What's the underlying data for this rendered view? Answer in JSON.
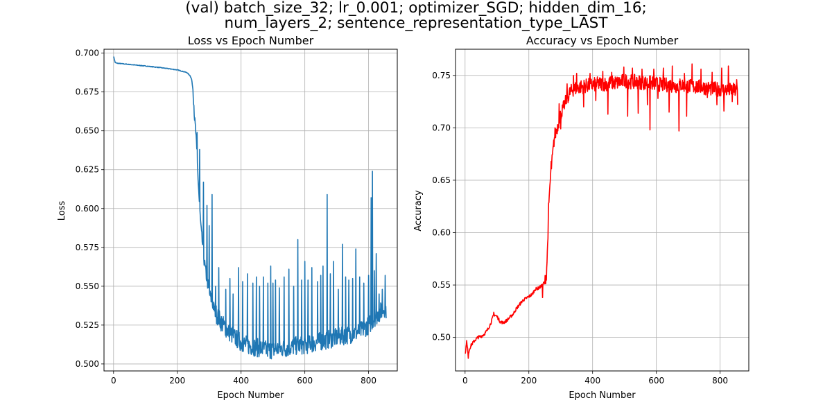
{
  "figure": {
    "suptitle_line1": "(val) batch_size_32; lr_0.001; optimizer_SGD; hidden_dim_16;",
    "suptitle_line2": "num_layers_2; sentence_representation_type_LAST"
  },
  "chart_data": [
    {
      "type": "line",
      "title": "Loss vs Epoch Number",
      "xlabel": "Epoch Number",
      "ylabel": "Loss",
      "xlim": [
        -30,
        890
      ],
      "ylim": [
        0.4955,
        0.7025
      ],
      "xticks": [
        0,
        200,
        400,
        600,
        800
      ],
      "yticks": [
        0.5,
        0.525,
        0.55,
        0.575,
        0.6,
        0.625,
        0.65,
        0.675,
        0.7
      ],
      "ytick_labels": [
        "0.500",
        "0.525",
        "0.550",
        "0.575",
        "0.600",
        "0.625",
        "0.650",
        "0.675",
        "0.700"
      ],
      "grid": true,
      "color": "#1f77b4",
      "series": [
        {
          "x": [
            0,
            5,
            10,
            50,
            100,
            150,
            200,
            230,
            240,
            245,
            250,
            255,
            258,
            260,
            265,
            270,
            275,
            280,
            285,
            290,
            300,
            310,
            320,
            340,
            360,
            380,
            400,
            420,
            440,
            460,
            480,
            500,
            520,
            540,
            560,
            580,
            600,
            620,
            640,
            660,
            680,
            700,
            720,
            740,
            760,
            780,
            800,
            810,
            815,
            820,
            830,
            840,
            850,
            855
          ],
          "y": [
            0.698,
            0.694,
            0.6935,
            0.6927,
            0.6917,
            0.6906,
            0.6892,
            0.6875,
            0.6855,
            0.683,
            0.675,
            0.655,
            0.649,
            0.64,
            0.62,
            0.6,
            0.585,
            0.575,
            0.565,
            0.558,
            0.546,
            0.539,
            0.533,
            0.526,
            0.521,
            0.517,
            0.514,
            0.512,
            0.511,
            0.51,
            0.509,
            0.509,
            0.51,
            0.51,
            0.511,
            0.512,
            0.512,
            0.513,
            0.514,
            0.515,
            0.516,
            0.517,
            0.518,
            0.519,
            0.52,
            0.522,
            0.525,
            0.527,
            0.529,
            0.53,
            0.532,
            0.534,
            0.536,
            0.535
          ],
          "spikes": [
            [
              262,
              0.649
            ],
            [
              270,
              0.638
            ],
            [
              282,
              0.617
            ],
            [
              293,
              0.602
            ],
            [
              300,
              0.589
            ],
            [
              309,
              0.609
            ],
            [
              320,
              0.55
            ],
            [
              330,
              0.562
            ],
            [
              352,
              0.548
            ],
            [
              365,
              0.555
            ],
            [
              375,
              0.545
            ],
            [
              392,
              0.562
            ],
            [
              405,
              0.553
            ],
            [
              420,
              0.558
            ],
            [
              437,
              0.552
            ],
            [
              448,
              0.556
            ],
            [
              458,
              0.55
            ],
            [
              470,
              0.556
            ],
            [
              484,
              0.552
            ],
            [
              493,
              0.563
            ],
            [
              500,
              0.552
            ],
            [
              508,
              0.554
            ],
            [
              520,
              0.549
            ],
            [
              535,
              0.556
            ],
            [
              550,
              0.561
            ],
            [
              565,
              0.55
            ],
            [
              578,
              0.58
            ],
            [
              590,
              0.554
            ],
            [
              600,
              0.566
            ],
            [
              610,
              0.554
            ],
            [
              622,
              0.562
            ],
            [
              640,
              0.553
            ],
            [
              650,
              0.557
            ],
            [
              657,
              0.563
            ],
            [
              670,
              0.609
            ],
            [
              680,
              0.558
            ],
            [
              690,
              0.566
            ],
            [
              705,
              0.548
            ],
            [
              718,
              0.577
            ],
            [
              728,
              0.556
            ],
            [
              738,
              0.554
            ],
            [
              750,
              0.555
            ],
            [
              760,
              0.574
            ],
            [
              772,
              0.556
            ],
            [
              785,
              0.552
            ],
            [
              800,
              0.557
            ],
            [
              808,
              0.607
            ],
            [
              812,
              0.624
            ],
            [
              818,
              0.56
            ],
            [
              824,
              0.571
            ],
            [
              833,
              0.545
            ],
            [
              843,
              0.548
            ],
            [
              852,
              0.557
            ]
          ]
        }
      ]
    },
    {
      "type": "line",
      "title": "Accuracy vs Epoch Number",
      "xlabel": "Epoch Number",
      "ylabel": "Accuracy",
      "xlim": [
        -30,
        890
      ],
      "ylim": [
        0.468,
        0.775
      ],
      "xticks": [
        0,
        200,
        400,
        600,
        800
      ],
      "yticks": [
        0.5,
        0.55,
        0.6,
        0.65,
        0.7,
        0.75
      ],
      "ytick_labels": [
        "0.50",
        "0.55",
        "0.60",
        "0.65",
        "0.70",
        "0.75"
      ],
      "grid": true,
      "color": "#ff0000",
      "series": [
        {
          "x": [
            0,
            5,
            10,
            15,
            20,
            30,
            40,
            50,
            60,
            70,
            80,
            90,
            100,
            110,
            120,
            130,
            140,
            150,
            160,
            170,
            180,
            190,
            200,
            210,
            220,
            230,
            240,
            245,
            250,
            255,
            258,
            260,
            265,
            270,
            275,
            280,
            285,
            290,
            300,
            310,
            320,
            330,
            340,
            350,
            360,
            380,
            400,
            420,
            440,
            460,
            480,
            500,
            520,
            540,
            560,
            580,
            600,
            620,
            640,
            660,
            680,
            700,
            720,
            740,
            760,
            780,
            800,
            820,
            840,
            855
          ],
          "y": [
            0.484,
            0.495,
            0.484,
            0.49,
            0.493,
            0.497,
            0.5,
            0.501,
            0.503,
            0.507,
            0.513,
            0.522,
            0.52,
            0.515,
            0.514,
            0.516,
            0.519,
            0.522,
            0.527,
            0.531,
            0.535,
            0.537,
            0.539,
            0.541,
            0.546,
            0.547,
            0.549,
            0.551,
            0.553,
            0.56,
            0.58,
            0.6,
            0.64,
            0.66,
            0.675,
            0.69,
            0.696,
            0.701,
            0.713,
            0.721,
            0.729,
            0.734,
            0.737,
            0.738,
            0.739,
            0.74,
            0.741,
            0.742,
            0.742,
            0.743,
            0.743,
            0.745,
            0.744,
            0.744,
            0.743,
            0.743,
            0.742,
            0.741,
            0.741,
            0.74,
            0.741,
            0.74,
            0.739,
            0.739,
            0.738,
            0.737,
            0.737,
            0.736,
            0.736,
            0.735
          ],
          "spikes": [
            [
              5,
              0.497
            ],
            [
              10,
              0.48
            ],
            [
              90,
              0.524
            ],
            [
              243,
              0.538
            ],
            [
              262,
              0.628
            ],
            [
              270,
              0.668
            ],
            [
              282,
              0.7
            ],
            [
              295,
              0.723
            ],
            [
              300,
              0.699
            ],
            [
              312,
              0.72
            ],
            [
              320,
              0.742
            ],
            [
              325,
              0.726
            ],
            [
              340,
              0.75
            ],
            [
              350,
              0.752
            ],
            [
              372,
              0.72
            ],
            [
              392,
              0.752
            ],
            [
              410,
              0.726
            ],
            [
              432,
              0.754
            ],
            [
              448,
              0.713
            ],
            [
              460,
              0.753
            ],
            [
              480,
              0.742
            ],
            [
              498,
              0.758
            ],
            [
              510,
              0.711
            ],
            [
              525,
              0.757
            ],
            [
              543,
              0.714
            ],
            [
              555,
              0.756
            ],
            [
              572,
              0.722
            ],
            [
              580,
              0.698
            ],
            [
              592,
              0.756
            ],
            [
              605,
              0.728
            ],
            [
              622,
              0.757
            ],
            [
              640,
              0.715
            ],
            [
              650,
              0.759
            ],
            [
              671,
              0.697
            ],
            [
              688,
              0.752
            ],
            [
              695,
              0.711
            ],
            [
              712,
              0.761
            ],
            [
              725,
              0.744
            ],
            [
              740,
              0.756
            ],
            [
              760,
              0.729
            ],
            [
              775,
              0.753
            ],
            [
              790,
              0.722
            ],
            [
              805,
              0.757
            ],
            [
              812,
              0.716
            ],
            [
              826,
              0.759
            ],
            [
              838,
              0.725
            ],
            [
              852,
              0.746
            ],
            [
              855,
              0.722
            ]
          ]
        }
      ]
    }
  ]
}
